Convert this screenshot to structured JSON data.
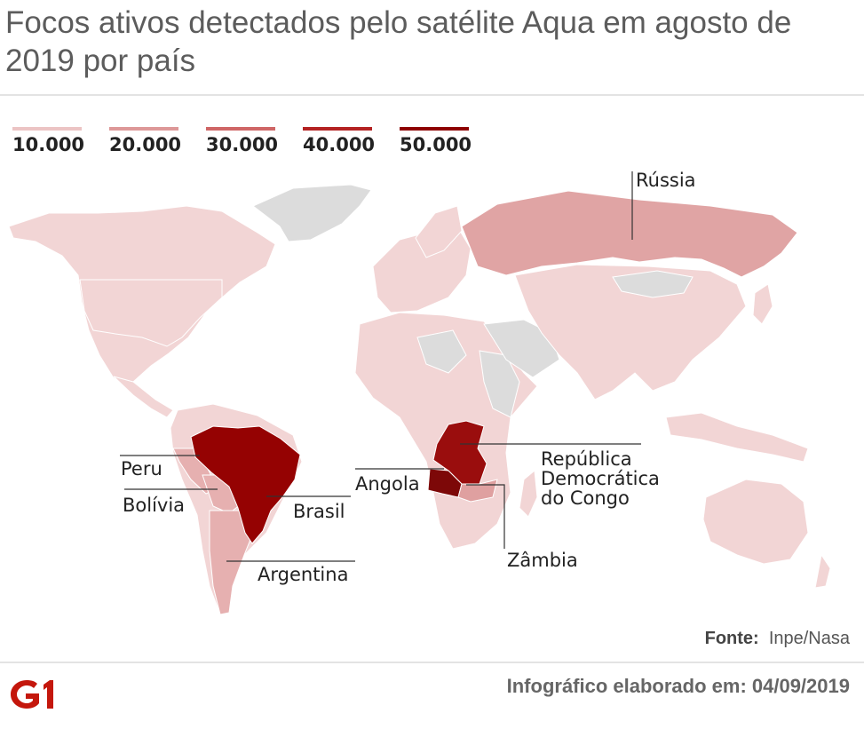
{
  "title": "Focos ativos detectados pelo satélite Aqua em agosto de 2019 por país",
  "legend": [
    {
      "label": "10.000",
      "color": "#ecc4c4"
    },
    {
      "label": "20.000",
      "color": "#dd9898"
    },
    {
      "label": "30.000",
      "color": "#cf6666"
    },
    {
      "label": "40.000",
      "color": "#b42222"
    },
    {
      "label": "50.000",
      "color": "#8e0000"
    }
  ],
  "colors": {
    "no_data": "#dcdcdc",
    "low": "#f2d5d5",
    "russia": "#e0a4a4",
    "brazil": "#950202",
    "angola": "#7d0808",
    "drc": "#9a0d0d",
    "zambia": "#dfa0a0",
    "bolivia": "#e6b0b0"
  },
  "labels": {
    "russia": "Rússia",
    "peru": "Peru",
    "bolivia": "Bolívia",
    "brazil": "Brasil",
    "argentina": "Argentina",
    "angola": "Angola",
    "drc": "República Democrática do Congo",
    "drc_line1": "República",
    "drc_line2": "Democrática",
    "drc_line3": "do Congo",
    "zambia": "Zâmbia"
  },
  "source_label": "Fonte:",
  "source_value": "Inpe/Nasa",
  "credit": "Infográfico elaborado em: 04/09/2019",
  "logo_text": "G1",
  "logo_color": "#c4170c"
}
